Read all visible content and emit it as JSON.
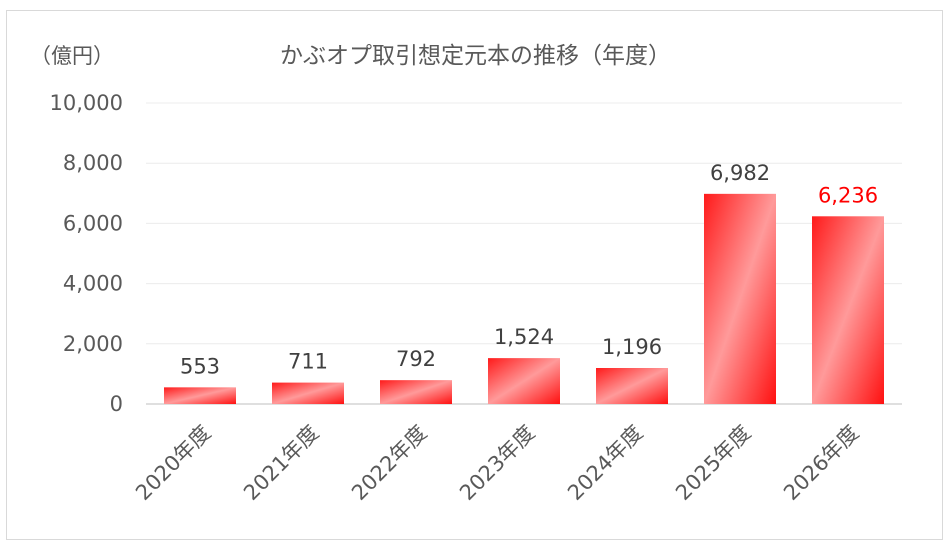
{
  "chart_data": {
    "type": "bar",
    "title": "かぶオプ取引想定元本の推移（年度）",
    "unit_label": "（億円）",
    "categories": [
      "2020年度",
      "2021年度",
      "2022年度",
      "2023年度",
      "2024年度",
      "2025年度",
      "2026年度"
    ],
    "values": [
      553,
      711,
      792,
      1524,
      1196,
      6982,
      6236
    ],
    "value_labels": [
      "553",
      "711",
      "792",
      "1,524",
      "1,196",
      "6,982",
      "6,236"
    ],
    "y_ticks": [
      "0",
      "2,000",
      "4,000",
      "6,000",
      "8,000",
      "10,000"
    ],
    "ylim": [
      0,
      10000
    ],
    "grid": true,
    "bar_color": "#ff2020",
    "highlight_index": 6,
    "highlight_label_color": "#ff0000",
    "label_color": "#404040"
  }
}
